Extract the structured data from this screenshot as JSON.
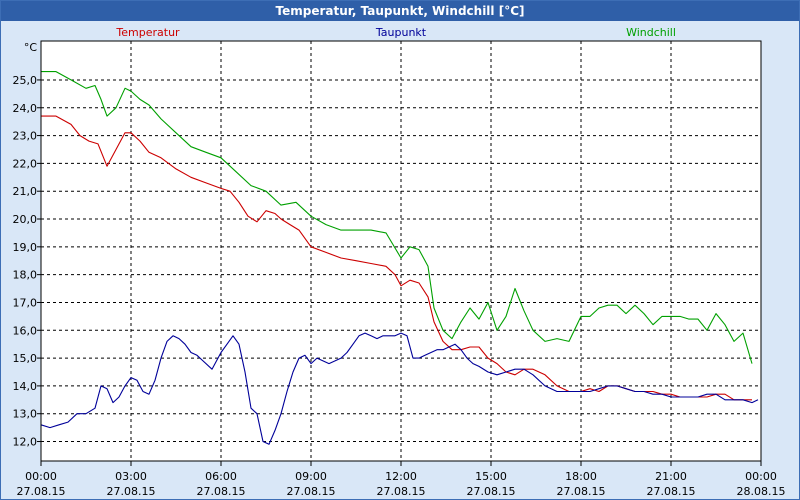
{
  "window": {
    "title": "Temperatur, Taupunkt, Windchill [°C]"
  },
  "chart_data": {
    "type": "line",
    "title": "Temperatur, Taupunkt, Windchill [°C]",
    "ylabel": "°C",
    "xlabel": "",
    "ylim": [
      11.3,
      26.4
    ],
    "xlim": [
      0,
      24
    ],
    "grid": true,
    "yticks": [
      12,
      13,
      14,
      15,
      16,
      17,
      18,
      19,
      20,
      21,
      22,
      23,
      24,
      25
    ],
    "ytick_labels": [
      "12,0",
      "13,0",
      "14,0",
      "15,0",
      "16,0",
      "17,0",
      "18,0",
      "19,0",
      "20,0",
      "21,0",
      "22,0",
      "23,0",
      "24,0",
      "25,0"
    ],
    "xticks": [
      0,
      3,
      6,
      9,
      12,
      15,
      18,
      21,
      24
    ],
    "xtick_labels": [
      {
        "time": "00:00",
        "date": "27.08.15"
      },
      {
        "time": "03:00",
        "date": "27.08.15"
      },
      {
        "time": "06:00",
        "date": "27.08.15"
      },
      {
        "time": "09:00",
        "date": "27.08.15"
      },
      {
        "time": "12:00",
        "date": "27.08.15"
      },
      {
        "time": "15:00",
        "date": "27.08.15"
      },
      {
        "time": "18:00",
        "date": "27.08.15"
      },
      {
        "time": "21:00",
        "date": "27.08.15"
      },
      {
        "time": "00:00",
        "date": "28.08.15"
      }
    ],
    "legend": [
      {
        "name": "Temperatur",
        "color": "#cc0000"
      },
      {
        "name": "Taupunkt",
        "color": "#000099"
      },
      {
        "name": "Windchill",
        "color": "#00a000"
      }
    ],
    "series": [
      {
        "name": "Windchill",
        "color": "#00a000",
        "x": [
          0,
          0.5,
          1,
          1.5,
          1.8,
          2,
          2.2,
          2.5,
          2.8,
          3,
          3.3,
          3.6,
          4,
          4.5,
          5,
          5.5,
          6,
          6.5,
          7,
          7.5,
          8,
          8.5,
          9,
          9.5,
          10,
          10.5,
          11,
          11.5,
          12,
          12.3,
          12.6,
          12.9,
          13.1,
          13.4,
          13.7,
          14,
          14.3,
          14.6,
          14.9,
          15.2,
          15.5,
          15.8,
          16.1,
          16.4,
          16.8,
          17.2,
          17.6,
          18,
          18.3,
          18.6,
          18.9,
          19.2,
          19.5,
          19.8,
          20.1,
          20.4,
          20.7,
          21,
          21.3,
          21.6,
          21.9,
          22.2,
          22.5,
          22.8,
          23.1,
          23.4,
          23.7
        ],
        "values": [
          25.3,
          25.3,
          25.0,
          24.7,
          24.8,
          24.3,
          23.7,
          24.0,
          24.7,
          24.6,
          24.3,
          24.1,
          23.6,
          23.1,
          22.6,
          22.4,
          22.2,
          21.7,
          21.2,
          21.0,
          20.5,
          20.6,
          20.1,
          19.8,
          19.6,
          19.6,
          19.6,
          19.5,
          18.6,
          19.0,
          18.9,
          18.3,
          16.8,
          16.0,
          15.7,
          16.3,
          16.8,
          16.4,
          17.0,
          16.0,
          16.5,
          17.5,
          16.7,
          16.0,
          15.6,
          15.7,
          15.6,
          16.5,
          16.5,
          16.8,
          16.9,
          16.9,
          16.6,
          16.9,
          16.6,
          16.2,
          16.5,
          16.5,
          16.5,
          16.4,
          16.4,
          16.0,
          16.6,
          16.2,
          15.6,
          15.9,
          14.8
        ]
      },
      {
        "name": "Temperatur",
        "color": "#cc0000",
        "x": [
          0,
          0.5,
          1,
          1.3,
          1.6,
          1.9,
          2.2,
          2.5,
          2.8,
          3,
          3.3,
          3.6,
          4,
          4.5,
          5,
          5.5,
          6,
          6.3,
          6.6,
          6.9,
          7.2,
          7.5,
          7.8,
          8,
          8.3,
          8.6,
          9,
          9.5,
          10,
          10.5,
          11,
          11.5,
          11.8,
          12,
          12.3,
          12.6,
          12.9,
          13.1,
          13.4,
          13.7,
          14,
          14.3,
          14.6,
          14.9,
          15.2,
          15.5,
          15.8,
          16.1,
          16.4,
          16.8,
          17.2,
          17.6,
          18,
          18.3,
          18.6,
          18.9,
          19.2,
          19.5,
          19.8,
          20.1,
          20.4,
          20.7,
          21,
          21.3,
          21.6,
          21.9,
          22.2,
          22.5,
          22.8,
          23.1,
          23.4,
          23.7
        ],
        "values": [
          23.7,
          23.7,
          23.4,
          23.0,
          22.8,
          22.7,
          21.9,
          22.5,
          23.1,
          23.1,
          22.8,
          22.4,
          22.2,
          21.8,
          21.5,
          21.3,
          21.1,
          21.0,
          20.6,
          20.1,
          19.9,
          20.3,
          20.2,
          20.0,
          19.8,
          19.6,
          19.0,
          18.8,
          18.6,
          18.5,
          18.4,
          18.3,
          18.0,
          17.6,
          17.8,
          17.7,
          17.2,
          16.3,
          15.6,
          15.3,
          15.3,
          15.4,
          15.4,
          15.0,
          14.8,
          14.5,
          14.4,
          14.6,
          14.6,
          14.4,
          14.0,
          13.8,
          13.8,
          13.9,
          13.8,
          14.0,
          14.0,
          13.9,
          13.8,
          13.8,
          13.8,
          13.7,
          13.7,
          13.6,
          13.6,
          13.6,
          13.6,
          13.7,
          13.7,
          13.5,
          13.5,
          13.5
        ]
      },
      {
        "name": "Taupunkt",
        "color": "#000099",
        "x": [
          0,
          0.3,
          0.6,
          0.9,
          1.2,
          1.5,
          1.8,
          2,
          2.2,
          2.4,
          2.6,
          2.8,
          3,
          3.2,
          3.4,
          3.6,
          3.8,
          4,
          4.2,
          4.4,
          4.6,
          4.8,
          5,
          5.2,
          5.4,
          5.7,
          6,
          6.2,
          6.4,
          6.6,
          6.8,
          7,
          7.2,
          7.4,
          7.6,
          7.8,
          8,
          8.2,
          8.4,
          8.6,
          8.8,
          9,
          9.2,
          9.4,
          9.6,
          9.8,
          10,
          10.2,
          10.4,
          10.6,
          10.8,
          11,
          11.2,
          11.4,
          11.6,
          11.8,
          12,
          12.2,
          12.4,
          12.6,
          12.8,
          13,
          13.2,
          13.4,
          13.6,
          13.8,
          14,
          14.2,
          14.4,
          14.6,
          14.9,
          15.2,
          15.5,
          15.8,
          16.1,
          16.4,
          16.8,
          17.2,
          17.6,
          18,
          18.3,
          18.6,
          18.9,
          19.2,
          19.5,
          19.8,
          20.1,
          20.4,
          20.7,
          21,
          21.3,
          21.6,
          21.9,
          22.2,
          22.5,
          22.8,
          23.1,
          23.4,
          23.7,
          23.9
        ],
        "values": [
          12.6,
          12.5,
          12.6,
          12.7,
          13.0,
          13.0,
          13.2,
          14.0,
          13.9,
          13.4,
          13.6,
          14.0,
          14.3,
          14.2,
          13.8,
          13.7,
          14.2,
          15.0,
          15.6,
          15.8,
          15.7,
          15.5,
          15.2,
          15.1,
          14.9,
          14.6,
          15.2,
          15.5,
          15.8,
          15.5,
          14.5,
          13.2,
          13.0,
          12.0,
          11.9,
          12.4,
          13.0,
          13.8,
          14.5,
          15.0,
          15.1,
          14.8,
          15.0,
          14.9,
          14.8,
          14.9,
          15.0,
          15.2,
          15.5,
          15.8,
          15.9,
          15.8,
          15.7,
          15.8,
          15.8,
          15.8,
          15.9,
          15.8,
          15.0,
          15.0,
          15.1,
          15.2,
          15.3,
          15.3,
          15.4,
          15.5,
          15.3,
          15.0,
          14.8,
          14.7,
          14.5,
          14.4,
          14.5,
          14.6,
          14.6,
          14.4,
          14.0,
          13.8,
          13.8,
          13.8,
          13.8,
          13.9,
          14.0,
          14.0,
          13.9,
          13.8,
          13.8,
          13.7,
          13.7,
          13.6,
          13.6,
          13.6,
          13.6,
          13.7,
          13.7,
          13.5,
          13.5,
          13.5,
          13.4,
          13.5
        ]
      }
    ]
  }
}
